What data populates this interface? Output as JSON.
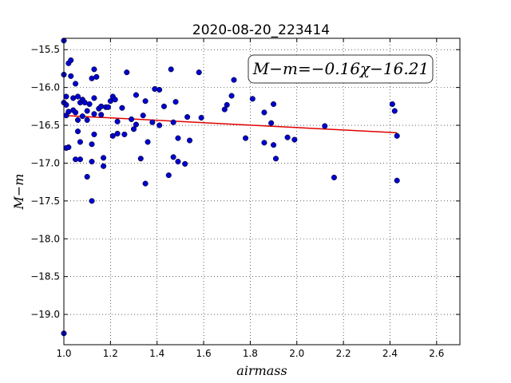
{
  "chart_data": {
    "type": "scatter",
    "title": "2020-08-20_223414",
    "xlabel": "airmass",
    "ylabel": "M−m",
    "xlim": [
      1.0,
      2.7
    ],
    "ylim": [
      -19.4,
      -15.35
    ],
    "y_inverted": true,
    "xticks": [
      1.0,
      1.2,
      1.4,
      1.6,
      1.8,
      2.0,
      2.2,
      2.4,
      2.6
    ],
    "xtick_labels": [
      "1.0",
      "1.2",
      "1.4",
      "1.6",
      "1.8",
      "2.0",
      "2.2",
      "2.4",
      "2.6"
    ],
    "yticks": [
      -15.5,
      -16.0,
      -16.5,
      -17.0,
      -17.5,
      -18.0,
      -18.5,
      -19.0
    ],
    "ytick_labels": [
      "−15.5",
      "−16.0",
      "−16.5",
      "−17.0",
      "−17.5",
      "−18.0",
      "−18.5",
      "−19.0"
    ],
    "grid": true,
    "annotation": "M−m=−0.16χ−16.21",
    "fit": {
      "slope": -0.16,
      "intercept": -16.21,
      "x_range": [
        1.0,
        2.43
      ],
      "color": "#e00000"
    },
    "point_color": "#0000cc",
    "points": [
      [
        1.0,
        -15.38
      ],
      [
        1.0,
        -15.83
      ],
      [
        1.0,
        -19.25
      ],
      [
        1.0,
        -16.2
      ],
      [
        1.01,
        -16.12
      ],
      [
        1.01,
        -16.23
      ],
      [
        1.01,
        -16.37
      ],
      [
        1.01,
        -16.8
      ],
      [
        1.02,
        -15.68
      ],
      [
        1.02,
        -16.32
      ],
      [
        1.02,
        -16.79
      ],
      [
        1.03,
        -15.64
      ],
      [
        1.03,
        -15.85
      ],
      [
        1.04,
        -16.14
      ],
      [
        1.04,
        -16.3
      ],
      [
        1.05,
        -15.95
      ],
      [
        1.05,
        -16.33
      ],
      [
        1.05,
        -16.95
      ],
      [
        1.06,
        -16.12
      ],
      [
        1.06,
        -16.43
      ],
      [
        1.06,
        -16.58
      ],
      [
        1.07,
        -16.2
      ],
      [
        1.07,
        -16.95
      ],
      [
        1.07,
        -16.72
      ],
      [
        1.08,
        -16.16
      ],
      [
        1.08,
        -16.38
      ],
      [
        1.09,
        -16.2
      ],
      [
        1.1,
        -16.43
      ],
      [
        1.1,
        -16.31
      ],
      [
        1.1,
        -17.18
      ],
      [
        1.11,
        -16.22
      ],
      [
        1.12,
        -15.88
      ],
      [
        1.12,
        -16.75
      ],
      [
        1.12,
        -16.98
      ],
      [
        1.12,
        -17.5
      ],
      [
        1.13,
        -15.76
      ],
      [
        1.13,
        -16.14
      ],
      [
        1.13,
        -16.35
      ],
      [
        1.13,
        -16.62
      ],
      [
        1.14,
        -15.86
      ],
      [
        1.15,
        -16.28
      ],
      [
        1.16,
        -16.36
      ],
      [
        1.16,
        -16.25
      ],
      [
        1.17,
        -16.93
      ],
      [
        1.17,
        -17.04
      ],
      [
        1.18,
        -16.26
      ],
      [
        1.19,
        -16.26
      ],
      [
        1.2,
        -16.18
      ],
      [
        1.21,
        -16.12
      ],
      [
        1.21,
        -16.64
      ],
      [
        1.22,
        -16.16
      ],
      [
        1.23,
        -16.45
      ],
      [
        1.23,
        -16.61
      ],
      [
        1.25,
        -16.27
      ],
      [
        1.26,
        -16.62
      ],
      [
        1.27,
        -15.8
      ],
      [
        1.29,
        -16.42
      ],
      [
        1.3,
        -16.55
      ],
      [
        1.31,
        -16.1
      ],
      [
        1.31,
        -16.49
      ],
      [
        1.33,
        -16.94
      ],
      [
        1.34,
        -16.37
      ],
      [
        1.35,
        -16.18
      ],
      [
        1.35,
        -17.27
      ],
      [
        1.36,
        -16.72
      ],
      [
        1.38,
        -16.46
      ],
      [
        1.39,
        -16.02
      ],
      [
        1.41,
        -16.03
      ],
      [
        1.41,
        -16.5
      ],
      [
        1.43,
        -16.25
      ],
      [
        1.45,
        -17.16
      ],
      [
        1.46,
        -15.76
      ],
      [
        1.47,
        -16.46
      ],
      [
        1.47,
        -16.92
      ],
      [
        1.48,
        -16.19
      ],
      [
        1.49,
        -16.67
      ],
      [
        1.49,
        -16.98
      ],
      [
        1.52,
        -17.01
      ],
      [
        1.53,
        -16.39
      ],
      [
        1.54,
        -16.7
      ],
      [
        1.58,
        -15.8
      ],
      [
        1.59,
        -16.4
      ],
      [
        1.69,
        -16.29
      ],
      [
        1.7,
        -16.23
      ],
      [
        1.72,
        -16.11
      ],
      [
        1.73,
        -15.9
      ],
      [
        1.78,
        -16.67
      ],
      [
        1.81,
        -16.15
      ],
      [
        1.86,
        -16.33
      ],
      [
        1.86,
        -16.73
      ],
      [
        1.89,
        -16.47
      ],
      [
        1.9,
        -16.76
      ],
      [
        1.9,
        -16.22
      ],
      [
        1.91,
        -16.94
      ],
      [
        1.96,
        -16.66
      ],
      [
        1.99,
        -16.69
      ],
      [
        2.12,
        -16.51
      ],
      [
        2.16,
        -17.19
      ],
      [
        2.41,
        -16.22
      ],
      [
        2.42,
        -16.31
      ],
      [
        2.43,
        -16.64
      ],
      [
        2.43,
        -17.23
      ]
    ]
  }
}
